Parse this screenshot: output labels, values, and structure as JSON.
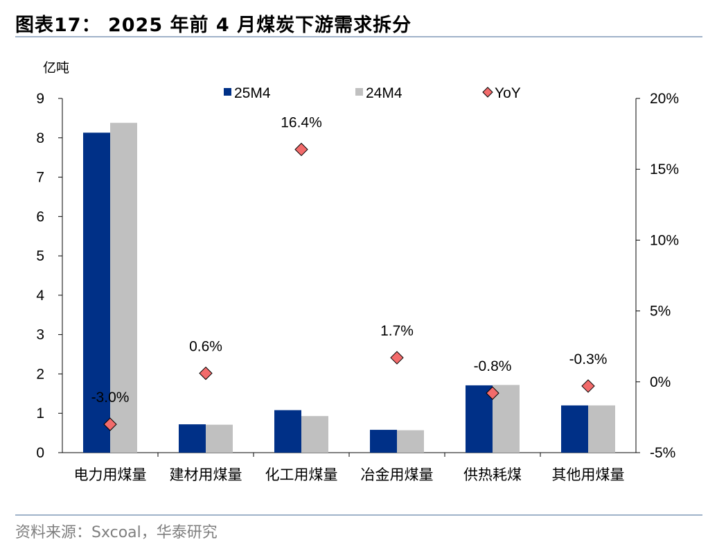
{
  "title": "图表17： 2025 年前 4 月煤炭下游需求拆分",
  "source": "资料来源：Sxcoal，华泰研究",
  "colors": {
    "series_25": "#003087",
    "series_24": "#c0c0c0",
    "yoy": "#f26b6b",
    "rule": "#9fb2c9"
  },
  "chart_data": {
    "type": "bar",
    "unit_label": "亿吨",
    "categories": [
      "电力用煤量",
      "建材用煤量",
      "化工用煤量",
      "冶金用煤量",
      "供热耗煤",
      "其他用煤量"
    ],
    "series": [
      {
        "name": "25M4",
        "values": [
          8.13,
          0.72,
          1.08,
          0.58,
          1.71,
          1.2
        ]
      },
      {
        "name": "24M4",
        "values": [
          8.38,
          0.71,
          0.93,
          0.57,
          1.72,
          1.2
        ]
      }
    ],
    "yoy": {
      "name": "YoY",
      "values": [
        -3.0,
        0.6,
        16.4,
        1.7,
        -0.8,
        -0.3
      ],
      "labels": [
        "-3.0%",
        "0.6%",
        "16.4%",
        "1.7%",
        "-0.8%",
        "-0.3%"
      ]
    },
    "left_axis": {
      "min": 0,
      "max": 9,
      "ticks": [
        "0",
        "1",
        "2",
        "3",
        "4",
        "5",
        "6",
        "7",
        "8",
        "9"
      ]
    },
    "right_axis": {
      "min": -5,
      "max": 20,
      "ticks": [
        "-5%",
        "0%",
        "5%",
        "10%",
        "15%",
        "20%"
      ]
    },
    "legend": [
      "25M4",
      "24M4",
      "YoY"
    ],
    "legend_position": "top"
  }
}
